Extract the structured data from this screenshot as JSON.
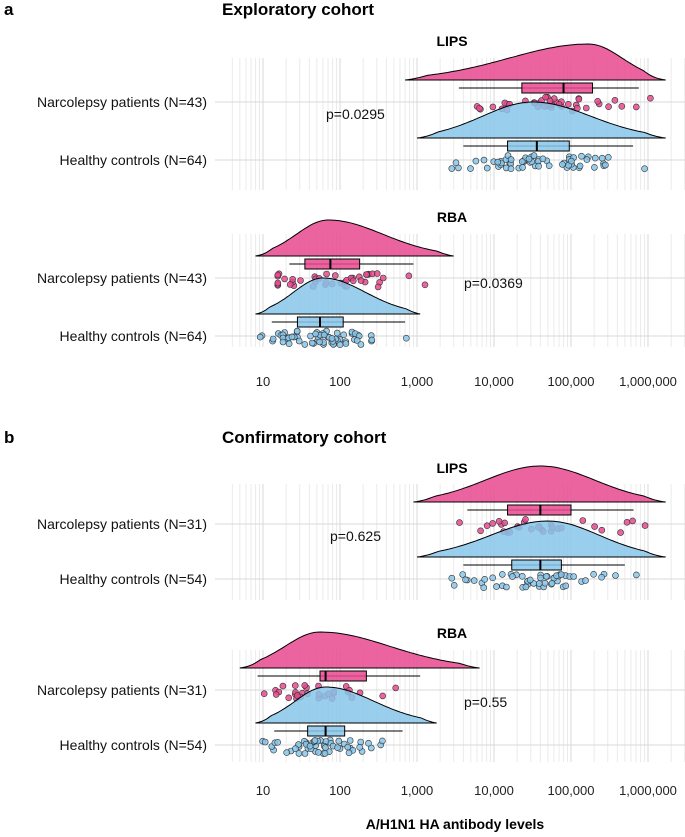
{
  "xlabel": "A/H1N1 HA antibody levels",
  "x_ticks": [
    {
      "value": 10,
      "label": "10"
    },
    {
      "value": 100,
      "label": "100"
    },
    {
      "value": 1000,
      "label": "1,000"
    },
    {
      "value": 10000,
      "label": "10,000"
    },
    {
      "value": 100000,
      "label": "100,000"
    },
    {
      "value": 1000000,
      "label": "1,000,000"
    }
  ],
  "colors": {
    "narcolepsy": "#e8498f",
    "controls": "#88c6ea",
    "median_line": "#000000",
    "grid": "#d9d9d9"
  },
  "panels": [
    {
      "letter": "a",
      "title": "Exploratory cohort"
    },
    {
      "letter": "b",
      "title": "Confirmatory cohort"
    }
  ],
  "chart_data": {
    "type": "raincloud",
    "xscale": "log10",
    "xlim": [
      4,
      2000000
    ],
    "xlabel": "A/H1N1 HA antibody levels",
    "facets": [
      {
        "panel": "a",
        "cohort": "Exploratory cohort",
        "assay": "LIPS",
        "pvalue": "p=0.0295",
        "groups": [
          {
            "label": "Narcolepsy patients (N=43)",
            "name": "Narcolepsy patients",
            "n": 43,
            "box": {
              "q1": 23000,
              "median": 80000,
              "q3": 190000,
              "whisker_low": 3500,
              "whisker_high": 760000
            },
            "density_range": [
              700,
              1700000
            ],
            "density_peak": 170000
          },
          {
            "label": "Healthy controls (N=64)",
            "name": "Healthy controls",
            "n": 64,
            "box": {
              "q1": 15000,
              "median": 36000,
              "q3": 95000,
              "whisker_low": 4000,
              "whisker_high": 640000
            },
            "density_range": [
              1000,
              1700000
            ],
            "density_peak": 32000
          }
        ]
      },
      {
        "panel": "a",
        "cohort": "Exploratory cohort",
        "assay": "RBA",
        "pvalue": "p=0.0369",
        "groups": [
          {
            "label": "Narcolepsy patients (N=43)",
            "name": "Narcolepsy patients",
            "n": 43,
            "box": {
              "q1": 35000,
              "median": 75000,
              "q3": 180000,
              "whisker_low": 22000,
              "whisker_high": 900000
            },
            "box_units": "x1e-3",
            "density_range": [
              8,
              3000
            ],
            "density_peak": 70
          },
          {
            "label": "Healthy controls (N=64)",
            "name": "Healthy controls",
            "n": 64,
            "box": {
              "q1": 28000,
              "median": 55000,
              "q3": 110000,
              "whisker_low": 13000,
              "whisker_high": 700000
            },
            "box_units": "x1e-3",
            "density_range": [
              8,
              1100
            ],
            "density_peak": 60
          }
        ]
      },
      {
        "panel": "b",
        "cohort": "Confirmatory cohort",
        "assay": "LIPS",
        "pvalue": "p=0.625",
        "groups": [
          {
            "label": "Narcolepsy patients (N=31)",
            "name": "Narcolepsy patients",
            "n": 31,
            "box": {
              "q1": 15000,
              "median": 40000,
              "q3": 100000,
              "whisker_low": 4500,
              "whisker_high": 650000
            },
            "density_range": [
              900,
              1700000
            ],
            "density_peak": 40000
          },
          {
            "label": "Healthy controls (N=54)",
            "name": "Healthy controls",
            "n": 54,
            "box": {
              "q1": 17000,
              "median": 40000,
              "q3": 75000,
              "whisker_low": 4000,
              "whisker_high": 500000
            },
            "density_range": [
              1000,
              1700000
            ],
            "density_peak": 50000
          }
        ]
      },
      {
        "panel": "b",
        "cohort": "Confirmatory cohort",
        "assay": "RBA",
        "pvalue": "p=0.55",
        "groups": [
          {
            "label": "Narcolepsy patients (N=31)",
            "name": "Narcolepsy patients",
            "n": 31,
            "box": {
              "q1": 55000,
              "median": 65000,
              "q3": 220000,
              "whisker_low": 8500,
              "whisker_high": 1100000
            },
            "box_units": "x1e-3",
            "density_range": [
              5,
              6500
            ],
            "density_peak": 55
          },
          {
            "label": "Healthy controls (N=54)",
            "name": "Healthy controls",
            "n": 54,
            "box": {
              "q1": 38000,
              "median": 65000,
              "q3": 115000,
              "whisker_low": 14000,
              "whisker_high": 650000
            },
            "box_units": "x1e-3",
            "density_range": [
              8,
              1800
            ],
            "density_peak": 65
          }
        ]
      }
    ]
  }
}
